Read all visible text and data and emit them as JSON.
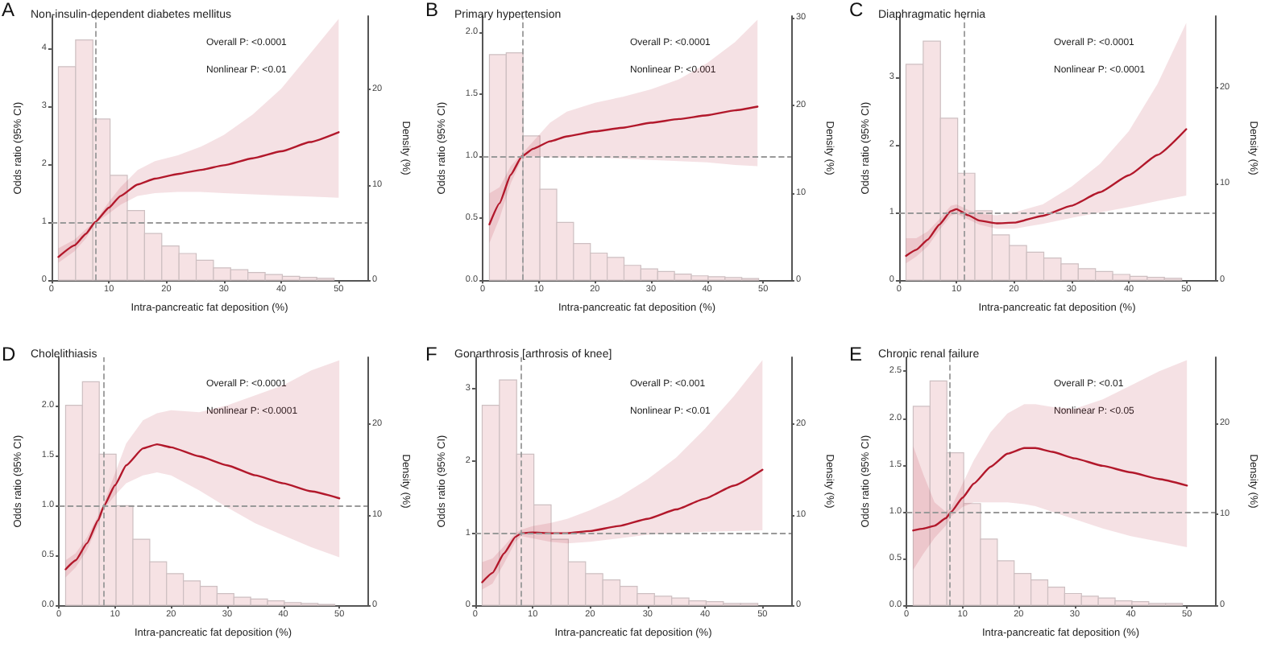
{
  "chart_data": [
    {
      "type": "line",
      "title": "Non-insulin-dependent diabetes mellitus",
      "xlabel": "Intra-pancreatic fat deposition (%)",
      "ylabel": "Odds ratio (95% CI)",
      "y2label": "Density (%)",
      "annotations": [
        "A",
        "Overall P: <0.0001",
        "Nonlinear P: <0.01"
      ],
      "xlim": [
        0,
        55
      ],
      "xticks": [
        0,
        10,
        20,
        30,
        40,
        50
      ],
      "ylim": [
        0,
        4.55
      ],
      "yticks": [
        0,
        1,
        2,
        3,
        4
      ],
      "y2lim": [
        0,
        27.7
      ],
      "y2ticks": [
        0,
        10,
        20
      ],
      "ref_lines": [
        {
          "axis": "y",
          "value": 1,
          "color": "#999999",
          "line_style": "dashed"
        },
        {
          "axis": "x",
          "value": 7.6,
          "color": "#999999",
          "line_style": "dashed"
        }
      ],
      "series": [
        {
          "type": "histogram",
          "axis": "y2",
          "color": "#f6e2e4",
          "bins": [
            1.2,
            4.2,
            7.2,
            10.2,
            13.2,
            16.2,
            19.2,
            22.2,
            25.2,
            28.2,
            31.2,
            34.2,
            37.2,
            40.2,
            43.2,
            46.2,
            49.2
          ],
          "values": [
            22.4,
            25.2,
            16.9,
            11.0,
            7.3,
            4.9,
            3.6,
            2.8,
            2.1,
            1.3,
            1.1,
            0.8,
            0.6,
            0.4,
            0.3,
            0.2
          ]
        },
        {
          "color": "#b2182b",
          "x": [
            1.2,
            4,
            6,
            7.6,
            10,
            12,
            15,
            18,
            22,
            26,
            30,
            35,
            40,
            45,
            50
          ],
          "values": [
            0.4,
            0.6,
            0.8,
            1.0,
            1.25,
            1.45,
            1.65,
            1.75,
            1.83,
            1.9,
            1.98,
            2.1,
            2.22,
            2.38,
            2.55
          ],
          "lower": [
            0.3,
            0.5,
            0.72,
            0.98,
            1.15,
            1.3,
            1.45,
            1.5,
            1.52,
            1.52,
            1.5,
            1.48,
            1.46,
            1.44,
            1.42
          ],
          "upper": [
            0.55,
            0.7,
            0.88,
            1.02,
            1.35,
            1.6,
            1.9,
            2.05,
            2.15,
            2.3,
            2.5,
            2.85,
            3.3,
            3.9,
            4.5
          ]
        }
      ]
    },
    {
      "type": "line",
      "title": "Primary hypertension",
      "xlabel": "Intra-pancreatic fat deposition (%)",
      "ylabel": "Odds ratio (95% CI)",
      "y2label": "Density (%)",
      "annotations": [
        "B",
        "Overall P: <0.0001",
        "Nonlinear P: <0.001"
      ],
      "xlim": [
        0,
        55
      ],
      "xticks": [
        0,
        10,
        20,
        30,
        40,
        50
      ],
      "ylim": [
        0,
        2.13
      ],
      "yticks": [
        {
          "value": 0,
          "label": "0.0"
        },
        {
          "value": 0.5,
          "label": "0.5"
        },
        {
          "value": 1,
          "label": "1.0"
        },
        {
          "value": 1.5,
          "label": "1.5"
        },
        {
          "value": 2,
          "label": "2.0"
        }
      ],
      "y2lim": [
        0,
        30.2
      ],
      "y2ticks": [
        0,
        10,
        20,
        30
      ],
      "ref_lines": [
        {
          "axis": "y",
          "value": 1,
          "color": "#999999",
          "line_style": "dashed"
        },
        {
          "axis": "x",
          "value": 7.1,
          "color": "#999999",
          "line_style": "dashed"
        }
      ],
      "series": [
        {
          "type": "histogram",
          "axis": "y2",
          "color": "#f6e2e4",
          "bins": [
            1.2,
            4.2,
            7.2,
            10.2,
            13.2,
            16.2,
            19.2,
            22.2,
            25.2,
            28.2,
            31.2,
            34.2,
            37.2,
            40.2,
            43.2,
            46.2,
            49.2
          ],
          "values": [
            25.8,
            26.0,
            16.5,
            10.4,
            6.6,
            4.2,
            3.1,
            2.6,
            1.7,
            1.3,
            1.0,
            0.7,
            0.5,
            0.4,
            0.3,
            0.2
          ]
        },
        {
          "color": "#b2182b",
          "x": [
            1.2,
            3,
            5,
            7,
            9,
            12,
            15,
            20,
            25,
            30,
            35,
            40,
            45,
            49
          ],
          "values": [
            0.45,
            0.62,
            0.85,
            1.0,
            1.06,
            1.12,
            1.16,
            1.2,
            1.23,
            1.27,
            1.3,
            1.33,
            1.37,
            1.4
          ],
          "lower": [
            0.3,
            0.5,
            0.78,
            0.98,
            1.0,
            0.99,
            0.99,
            0.99,
            0.98,
            0.97,
            0.96,
            0.95,
            0.93,
            0.92
          ],
          "upper": [
            0.7,
            0.75,
            0.92,
            1.02,
            1.12,
            1.27,
            1.36,
            1.43,
            1.48,
            1.54,
            1.62,
            1.75,
            1.92,
            2.1
          ]
        }
      ]
    },
    {
      "type": "line",
      "title": "Diaphragmatic hernia",
      "xlabel": "Intra-pancreatic fat deposition (%)",
      "ylabel": "Odds ratio (95% CI)",
      "y2label": "Density (%)",
      "annotations": [
        "C",
        "Overall P: <0.0001",
        "Nonlinear P: <0.0001"
      ],
      "xlim": [
        0,
        55
      ],
      "xticks": [
        0,
        10,
        20,
        30,
        40,
        50
      ],
      "ylim": [
        0,
        3.9
      ],
      "yticks": [
        0,
        1,
        2,
        3
      ],
      "y2lim": [
        0,
        27.4
      ],
      "y2ticks": [
        0,
        10,
        20
      ],
      "ref_lines": [
        {
          "axis": "y",
          "value": 1,
          "color": "#999999",
          "line_style": "dashed"
        },
        {
          "axis": "x",
          "value": 11.3,
          "color": "#999999",
          "line_style": "dashed"
        }
      ],
      "series": [
        {
          "type": "histogram",
          "axis": "y2",
          "color": "#f6e2e4",
          "bins": [
            1.2,
            4.2,
            7.2,
            10.2,
            13.2,
            16.2,
            19.2,
            22.2,
            25.2,
            28.2,
            31.2,
            34.2,
            37.2,
            40.2,
            43.2,
            46.2,
            49.2
          ],
          "values": [
            22.4,
            24.8,
            16.8,
            11.1,
            7.2,
            4.7,
            3.6,
            2.9,
            2.3,
            1.7,
            1.2,
            0.9,
            0.6,
            0.4,
            0.3,
            0.2
          ]
        },
        {
          "color": "#b2182b",
          "x": [
            1.2,
            3,
            5,
            7,
            9,
            10,
            12,
            14,
            17,
            20,
            25,
            30,
            35,
            40,
            45,
            50
          ],
          "values": [
            0.36,
            0.45,
            0.6,
            0.82,
            1.02,
            1.05,
            0.96,
            0.88,
            0.84,
            0.85,
            0.95,
            1.1,
            1.3,
            1.55,
            1.85,
            2.23
          ],
          "lower": [
            0.25,
            0.35,
            0.5,
            0.74,
            0.95,
            0.98,
            0.9,
            0.82,
            0.76,
            0.76,
            0.83,
            0.92,
            1.0,
            1.08,
            1.17,
            1.25
          ],
          "upper": [
            0.62,
            0.62,
            0.72,
            0.9,
            1.1,
            1.12,
            1.04,
            0.98,
            0.96,
            1.0,
            1.12,
            1.38,
            1.72,
            2.2,
            2.9,
            3.8
          ]
        }
      ]
    },
    {
      "type": "line",
      "title": "Cholelithiasis",
      "xlabel": "Intra-pancreatic fat deposition (%)",
      "ylabel": "Odds ratio (95% CI)",
      "y2label": "Density (%)",
      "annotations": [
        "D",
        "Overall P: <0.0001",
        "Nonlinear P: <0.0001"
      ],
      "xlim": [
        0,
        55
      ],
      "xticks": [
        0,
        10,
        20,
        30,
        40,
        50
      ],
      "ylim": [
        0,
        2.48
      ],
      "yticks": [
        {
          "value": 0,
          "label": "0.0"
        },
        {
          "value": 0.5,
          "label": "0.5"
        },
        {
          "value": 1,
          "label": "1.0"
        },
        {
          "value": 1.5,
          "label": "1.5"
        },
        {
          "value": 2,
          "label": "2.0"
        }
      ],
      "y2lim": [
        0,
        27.4
      ],
      "y2ticks": [
        0,
        10,
        20
      ],
      "ref_lines": [
        {
          "axis": "y",
          "value": 1,
          "color": "#999999",
          "line_style": "dashed"
        },
        {
          "axis": "x",
          "value": 8,
          "color": "#999999",
          "line_style": "dashed"
        }
      ],
      "series": [
        {
          "type": "histogram",
          "axis": "y2",
          "color": "#f6e2e4",
          "bins": [
            1.2,
            4.2,
            7.2,
            10.2,
            13.2,
            16.2,
            19.2,
            22.2,
            25.2,
            28.2,
            31.2,
            34.2,
            37.2,
            40.2,
            43.2,
            46.2,
            49.2
          ],
          "values": [
            22.1,
            24.7,
            16.7,
            11.0,
            7.3,
            4.8,
            3.5,
            2.7,
            2.1,
            1.3,
            0.9,
            0.7,
            0.5,
            0.3,
            0.2,
            0.1
          ]
        },
        {
          "color": "#b2182b",
          "x": [
            1.2,
            3,
            5,
            7,
            8,
            10,
            12,
            15,
            17.5,
            20,
            25,
            30,
            35,
            40,
            45,
            50
          ],
          "values": [
            0.36,
            0.45,
            0.62,
            0.85,
            0.99,
            1.2,
            1.4,
            1.57,
            1.61,
            1.58,
            1.49,
            1.4,
            1.3,
            1.22,
            1.14,
            1.07
          ],
          "lower": [
            0.28,
            0.38,
            0.55,
            0.8,
            0.96,
            1.1,
            1.22,
            1.3,
            1.33,
            1.3,
            1.15,
            0.98,
            0.82,
            0.7,
            0.58,
            0.48
          ],
          "upper": [
            0.45,
            0.52,
            0.68,
            0.9,
            1.02,
            1.32,
            1.62,
            1.85,
            1.92,
            1.95,
            1.93,
            2.0,
            2.1,
            2.2,
            2.35,
            2.45
          ]
        }
      ]
    },
    {
      "type": "line",
      "title": "Gonarthrosis [arthrosis of knee]",
      "xlabel": "Intra-pancreatic fat deposition (%)",
      "ylabel": "Odds ratio (95% CI)",
      "y2label": "Density (%)",
      "annotations": [
        "F",
        "Overall P: <0.001",
        "Nonlinear P: <0.01"
      ],
      "xlim": [
        0,
        55
      ],
      "xticks": [
        0,
        10,
        20,
        30,
        40,
        50
      ],
      "ylim": [
        0,
        3.44
      ],
      "yticks": [
        0,
        1,
        2,
        3
      ],
      "y2lim": [
        0,
        27.4
      ],
      "y2ticks": [
        0,
        10,
        20
      ],
      "ref_lines": [
        {
          "axis": "y",
          "value": 1,
          "color": "#999999",
          "line_style": "dashed"
        },
        {
          "axis": "x",
          "value": 7.8,
          "color": "#999999",
          "line_style": "dashed"
        }
      ],
      "series": [
        {
          "type": "histogram",
          "axis": "y2",
          "color": "#f6e2e4",
          "bins": [
            1.2,
            4.2,
            7.2,
            10.2,
            13.2,
            16.2,
            19.2,
            22.2,
            25.2,
            28.2,
            31.2,
            34.2,
            37.2,
            40.2,
            43.2,
            46.2,
            49.2
          ],
          "values": [
            22.1,
            24.9,
            16.7,
            11.1,
            7.3,
            4.8,
            3.5,
            2.8,
            2.1,
            1.3,
            1.0,
            0.8,
            0.5,
            0.4,
            0.2,
            0.2
          ]
        },
        {
          "color": "#b2182b",
          "x": [
            1.2,
            3,
            5,
            7,
            8,
            10,
            13,
            16,
            20,
            25,
            30,
            35,
            40,
            45,
            50
          ],
          "values": [
            0.32,
            0.45,
            0.72,
            0.95,
            1.0,
            1.01,
            1.0,
            1.0,
            1.03,
            1.1,
            1.2,
            1.33,
            1.48,
            1.66,
            1.88
          ],
          "lower": [
            0.22,
            0.3,
            0.58,
            0.88,
            0.96,
            0.93,
            0.88,
            0.86,
            0.88,
            0.93,
            0.98,
            1.0,
            1.02,
            1.03,
            1.04
          ],
          "upper": [
            0.6,
            0.65,
            0.82,
            1.0,
            1.05,
            1.1,
            1.14,
            1.2,
            1.32,
            1.5,
            1.75,
            2.05,
            2.45,
            2.9,
            3.4
          ]
        }
      ]
    },
    {
      "type": "line",
      "title": "Chronic renal failure",
      "xlabel": "Intra-pancreatic fat deposition (%)",
      "ylabel": "Odds ratio (95% CI)",
      "y2label": "Density (%)",
      "annotations": [
        "E",
        "Overall P: <0.01",
        "Nonlinear P: <0.05"
      ],
      "xlim": [
        0,
        55
      ],
      "xticks": [
        0,
        10,
        20,
        30,
        40,
        50
      ],
      "ylim": [
        0,
        2.65
      ],
      "yticks": [
        {
          "value": 0,
          "label": "0.0"
        },
        {
          "value": 0.5,
          "label": "0.5"
        },
        {
          "value": 1,
          "label": "1.0"
        },
        {
          "value": 1.5,
          "label": "1.5"
        },
        {
          "value": 2,
          "label": "2.0"
        },
        {
          "value": 2.5,
          "label": "2.5"
        }
      ],
      "y2lim": [
        0,
        27.3
      ],
      "y2ticks": [
        0,
        10,
        20
      ],
      "ref_lines": [
        {
          "axis": "y",
          "value": 1,
          "color": "#999999",
          "line_style": "dashed"
        },
        {
          "axis": "x",
          "value": 7.8,
          "color": "#999999",
          "line_style": "dashed"
        }
      ],
      "series": [
        {
          "type": "histogram",
          "axis": "y2",
          "color": "#f6e2e4",
          "bins": [
            1.2,
            4.2,
            7.2,
            10.2,
            13.2,
            16.2,
            19.2,
            22.2,
            25.2,
            28.2,
            31.2,
            34.2,
            37.2,
            40.2,
            43.2,
            46.2,
            49.2
          ],
          "values": [
            21.9,
            24.7,
            16.8,
            11.2,
            7.3,
            4.9,
            3.5,
            2.8,
            2.0,
            1.3,
            1.0,
            0.8,
            0.5,
            0.4,
            0.2,
            0.2
          ]
        },
        {
          "color": "#b2182b",
          "x": [
            1.2,
            3,
            5,
            7,
            8,
            10,
            12,
            15,
            18,
            21,
            23,
            26,
            30,
            35,
            40,
            45,
            50
          ],
          "values": [
            0.8,
            0.82,
            0.85,
            0.93,
            1.0,
            1.15,
            1.3,
            1.48,
            1.62,
            1.68,
            1.68,
            1.64,
            1.57,
            1.49,
            1.42,
            1.35,
            1.28
          ],
          "lower": [
            0.38,
            0.55,
            0.72,
            0.85,
            0.95,
            1.05,
            1.1,
            1.1,
            1.1,
            1.08,
            1.06,
            1.0,
            0.92,
            0.82,
            0.74,
            0.68,
            0.62
          ],
          "upper": [
            1.7,
            1.4,
            1.1,
            1.0,
            1.05,
            1.3,
            1.55,
            1.85,
            2.05,
            2.15,
            2.15,
            2.12,
            2.1,
            2.2,
            2.35,
            2.5,
            2.62
          ]
        }
      ]
    }
  ]
}
